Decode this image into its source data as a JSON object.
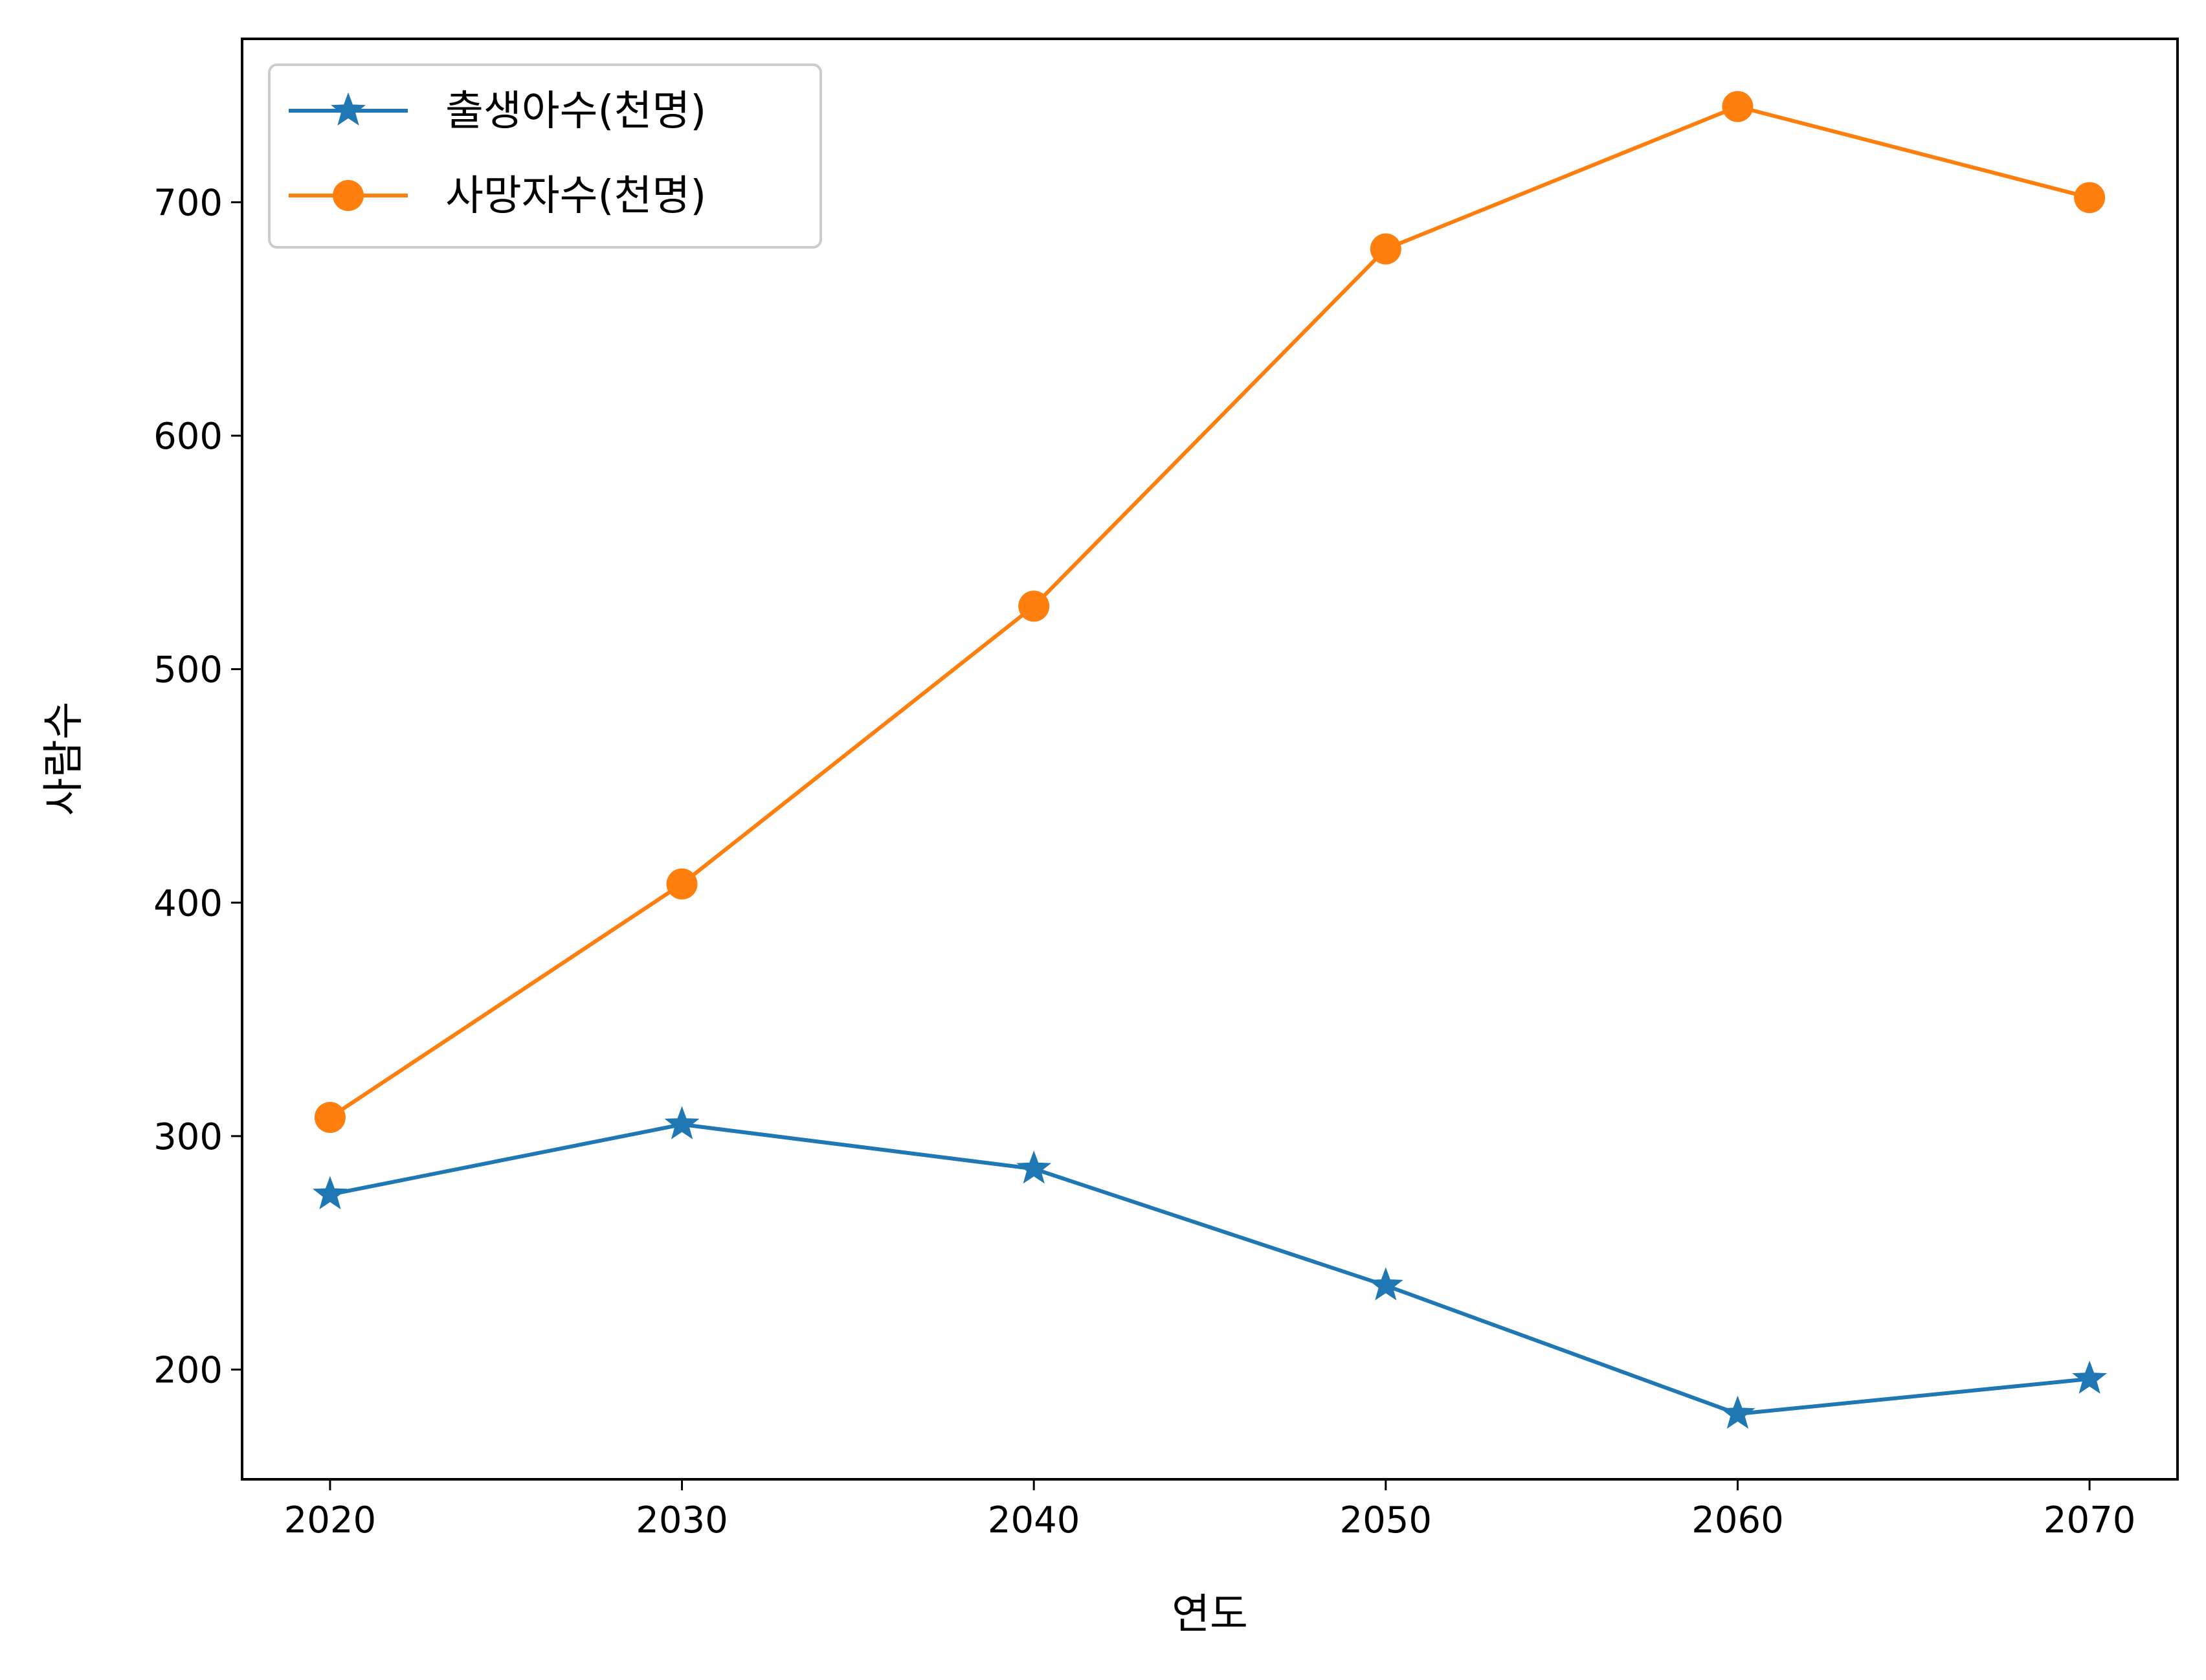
{
  "chart_data": {
    "type": "line",
    "title": "",
    "xlabel": "연도",
    "ylabel": "사람수",
    "x": [
      2020,
      2030,
      2040,
      2050,
      2060,
      2070
    ],
    "xticks": [
      "2020",
      "2030",
      "2040",
      "2050",
      "2060",
      "2070"
    ],
    "yticks": [
      "200",
      "300",
      "400",
      "500",
      "600",
      "700"
    ],
    "xlim": [
      2017.5,
      2072.5
    ],
    "ylim": [
      153,
      770
    ],
    "grid": false,
    "legend_position": "upper left",
    "series": [
      {
        "name": "출생아수(천명)",
        "values": [
          275,
          305,
          286,
          236,
          181,
          196
        ],
        "color": "#1f77b4",
        "marker": "star"
      },
      {
        "name": "사망자수(천명)",
        "values": [
          308,
          408,
          527,
          680,
          741,
          702
        ],
        "color": "#ff7f0e",
        "marker": "circle"
      }
    ]
  }
}
